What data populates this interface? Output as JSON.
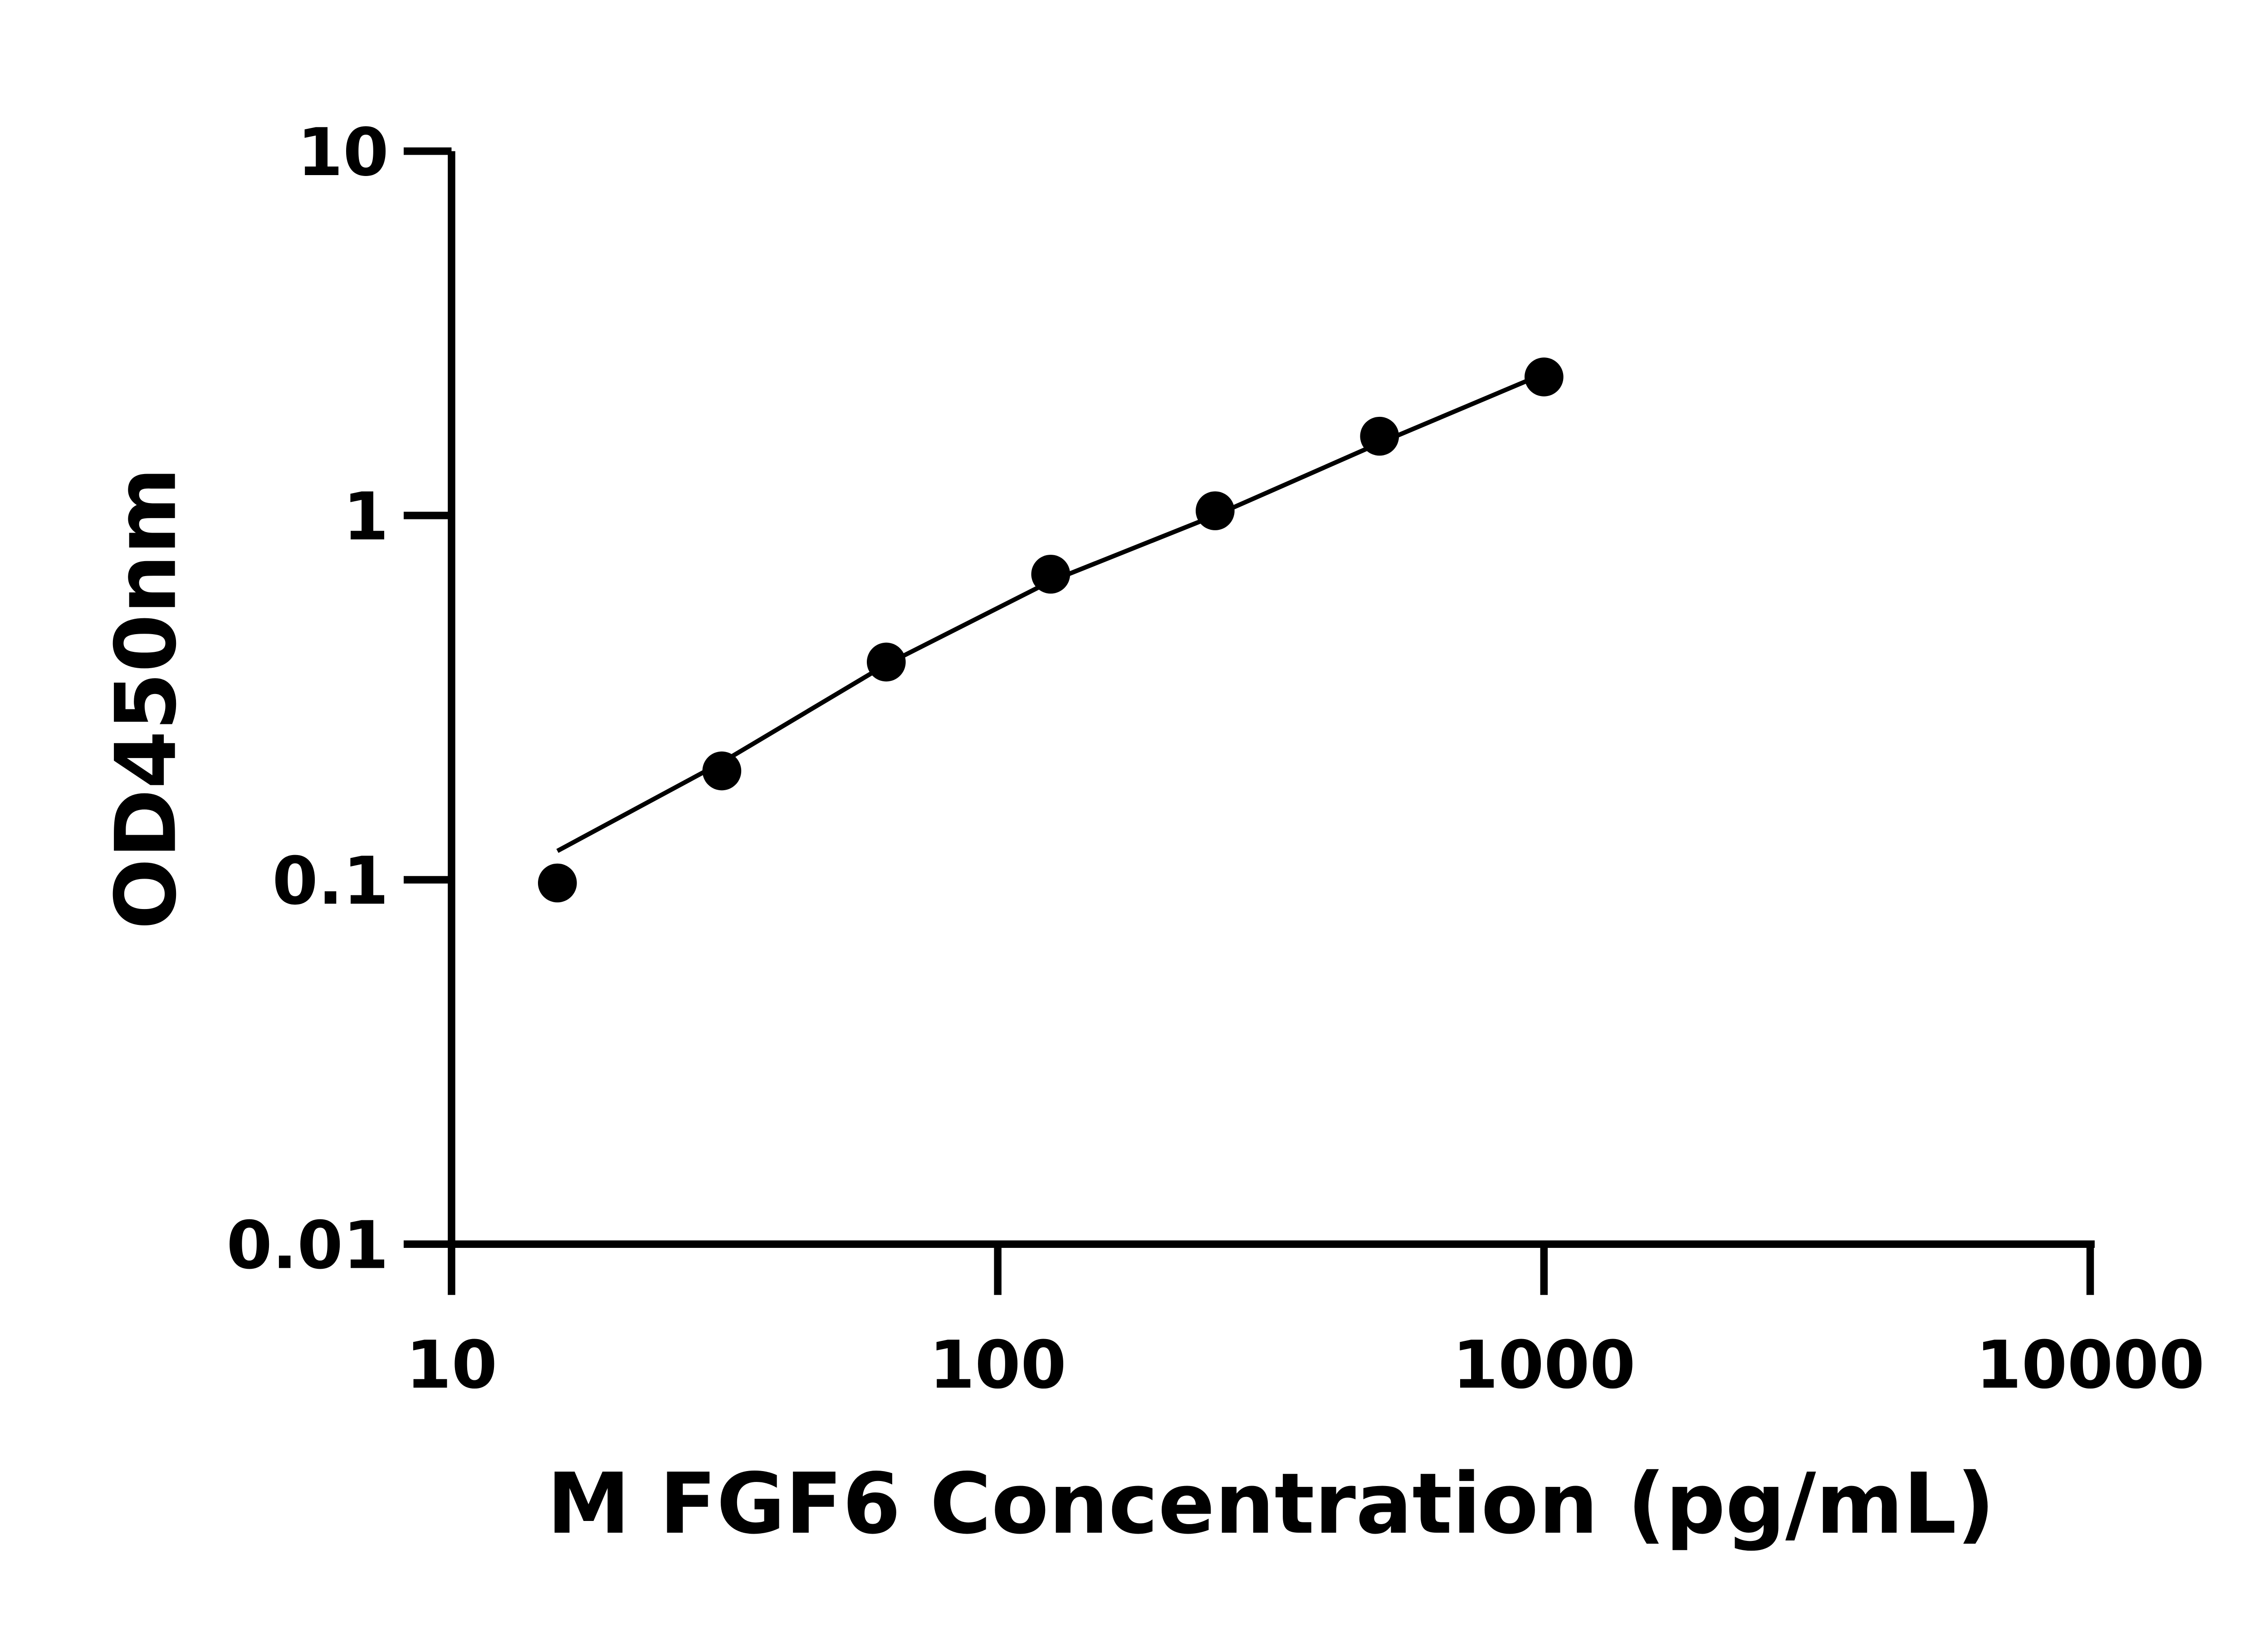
{
  "chart_data": {
    "type": "scatter",
    "title": "",
    "xlabel": "M FGF6 Concentration (pg/mL)",
    "ylabel": "OD450nm",
    "xscale": "log",
    "yscale": "log",
    "xlim": [
      10,
      10000
    ],
    "ylim": [
      0.01,
      10
    ],
    "x_ticks": [
      "10",
      "100",
      "1000",
      "10000"
    ],
    "y_ticks": [
      "0.01",
      "0.1",
      "1",
      "10"
    ],
    "grid": false,
    "legend": "none",
    "series": [
      {
        "x": [
          15.625,
          31.25,
          62.5,
          125,
          250,
          500,
          1000
        ],
        "y": [
          0.098,
          0.199,
          0.396,
          0.69,
          1.03,
          1.65,
          2.4
        ],
        "marker": "filled-circle",
        "color": "#000000"
      }
    ],
    "fit_line": {
      "x": [
        15.625,
        31.25,
        62.5,
        125,
        250,
        500,
        1000
      ],
      "y": [
        0.12,
        0.21,
        0.39,
        0.66,
        1.0,
        1.58,
        2.45
      ],
      "color": "#000000"
    }
  }
}
